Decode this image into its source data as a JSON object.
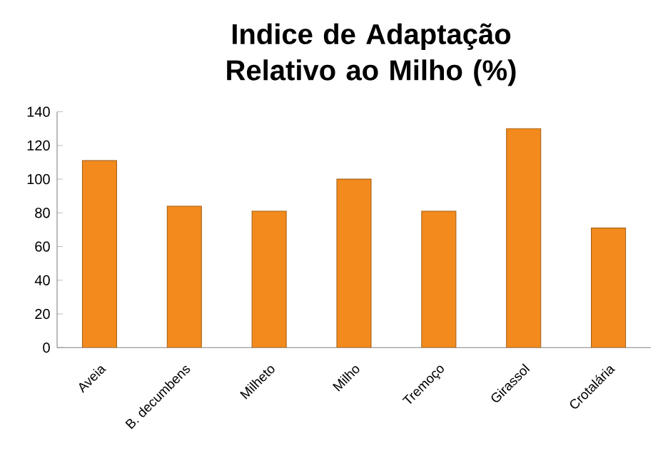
{
  "chart_data": {
    "type": "bar",
    "title": "Indice de Adaptação Relativo ao Milho (%)",
    "categories": [
      "Aveia",
      "B. decumbens",
      "Milheto",
      "Milho",
      "Tremoço",
      "Girassol",
      "Crotalária"
    ],
    "values": [
      111,
      84,
      81,
      100,
      81,
      130,
      71
    ],
    "color": "#f28a1e",
    "ylim": [
      0,
      140
    ],
    "yticks": [
      0,
      20,
      40,
      60,
      80,
      100,
      120,
      140
    ],
    "grid": false
  }
}
